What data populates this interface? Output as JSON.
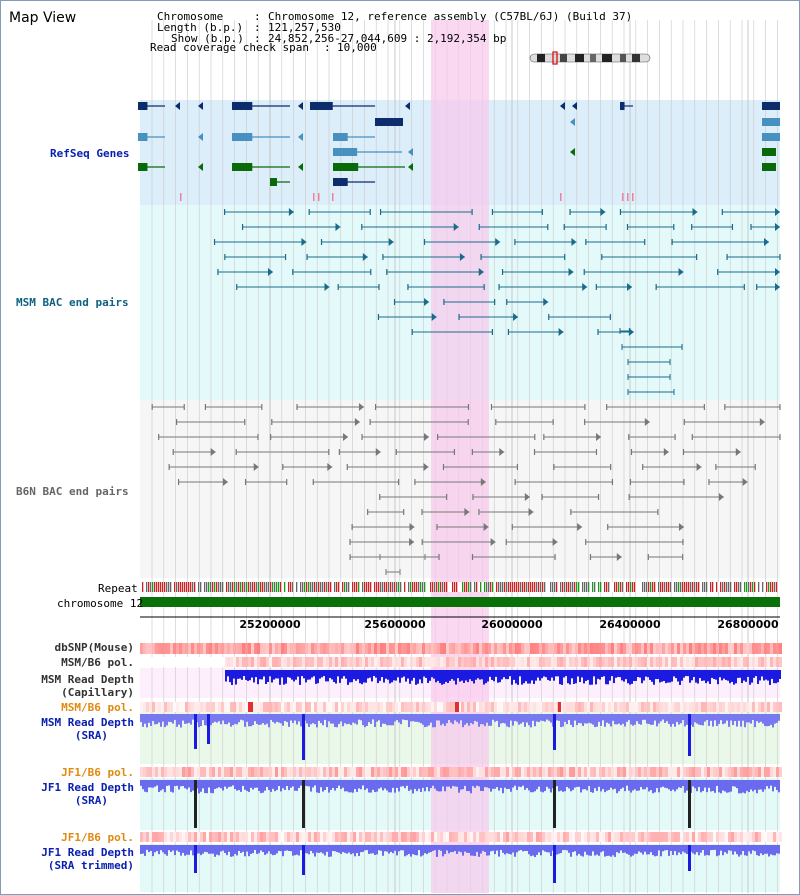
{
  "title": "Map View",
  "info": {
    "chromosome_key": "Chromosome",
    "chromosome_val": "Chromosome 12, reference assembly (C57BL/6J) (Build 37)",
    "length_key": "Length (b.p.)",
    "length_val": "121,257,530",
    "show_key": "Show (b.p.)",
    "show_val": "24,852,256-27,044,609 : 2,192,354 bp",
    "span_key": "Read coverage check span",
    "span_val": "10,000"
  },
  "tracks": {
    "refseq": "RefSeq Genes",
    "msm_bac": "MSM BAC end pairs",
    "b6n_bac": "B6N BAC end pairs",
    "repeat": "Repeat",
    "chromosome": "chromosome 12",
    "dbsnp": "dbSNP(Mouse)",
    "msm_b6_pol": "MSM/B6 pol.",
    "msm_depth_cap_1": "MSM Read Depth",
    "msm_depth_cap_2": "(Capillary)",
    "msm_b6_pol_2": "MSM/B6 pol.",
    "msm_depth_sra_1": "MSM Read Depth",
    "msm_depth_sra_2": "(SRA)",
    "jf1_b6_pol": "JF1/B6 pol.",
    "jf1_depth_sra_1": "JF1 Read Depth",
    "jf1_depth_sra_2": "(SRA)",
    "jf1_b6_pol_2": "JF1/B6 pol.",
    "jf1_depth_trim_1": "JF1 Read Depth",
    "jf1_depth_trim_2": "(SRA trimmed)"
  },
  "axis_ticks": [
    "25200000",
    "25600000",
    "26000000",
    "26400000",
    "26800000"
  ],
  "colors": {
    "refseq_bg": "#dbeefa",
    "msm_bg": "#e4fafa",
    "b6n_bg": "#f4f4f4",
    "highlight": "#f8d0ee",
    "gene_navy": "#0d2c6c",
    "gene_blue": "#4890c0",
    "gene_green": "#0a6a0a",
    "chrom_green": "#0a700a",
    "depth_blue": "#1a1ae0",
    "depth_light": "#7878f0"
  }
}
